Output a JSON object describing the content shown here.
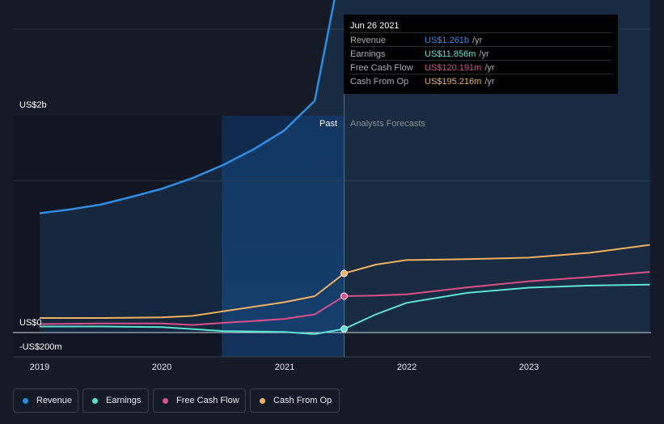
{
  "tooltip": {
    "date": "Jun 26 2021",
    "rows": [
      {
        "label": "Revenue",
        "value": "US$1.261b",
        "unit": "/yr",
        "color": "#2d8de2"
      },
      {
        "label": "Earnings",
        "value": "US$11.856m",
        "unit": "/yr",
        "color": "#5fe1d2"
      },
      {
        "label": "Free Cash Flow",
        "value": "US$120.191m",
        "unit": "/yr",
        "color": "#d94f87"
      },
      {
        "label": "Cash From Op",
        "value": "US$195.216m",
        "unit": "/yr",
        "color": "#f0b062"
      }
    ]
  },
  "region_labels": {
    "past": "Past",
    "forecast": "Analysts Forecasts"
  },
  "legend": [
    {
      "label": "Revenue",
      "color": "#2d8de2"
    },
    {
      "label": "Earnings",
      "color": "#5fe1d2"
    },
    {
      "label": "Free Cash Flow",
      "color": "#d94f87"
    },
    {
      "label": "Cash From Op",
      "color": "#f0b062"
    }
  ],
  "chart_data": {
    "type": "line",
    "x_unit": "year",
    "xlim": [
      2019.0,
      2023.99
    ],
    "ylim": [
      -200,
      2000
    ],
    "y_tick_labels": [
      "US$2b",
      "US$0",
      "-US$200m"
    ],
    "x_tick_labels": [
      "2019",
      "2020",
      "2021",
      "2022",
      "2023"
    ],
    "split_x": 2021.49,
    "highlight_range": [
      2020.49,
      2021.49
    ],
    "series": [
      {
        "name": "Revenue",
        "color": "#2d8de2",
        "area": true,
        "x": [
          2019.0,
          2019.25,
          2019.5,
          2019.75,
          2020.0,
          2020.25,
          2020.5,
          2020.75,
          2021.0,
          2021.25,
          2021.49,
          2021.75,
          2022.0,
          2022.25,
          2022.5,
          2022.75,
          2023.0,
          2023.25,
          2023.5,
          2023.75,
          2023.99
        ],
        "y": [
          393,
          406,
          422,
          447,
          474,
          509,
          552,
          604,
          666,
          764,
          1261,
          1296,
          1329,
          1348,
          1369,
          1385,
          1402,
          1432,
          1460,
          1490,
          1516
        ]
      },
      {
        "name": "Earnings",
        "color": "#5fe1d2",
        "x": [
          2019.0,
          2019.5,
          2020.0,
          2020.5,
          2021.0,
          2021.25,
          2021.49,
          2021.75,
          2022.0,
          2022.5,
          2023.0,
          2023.5,
          2023.99
        ],
        "y": [
          20,
          20,
          18,
          5,
          2,
          -5,
          12,
          60,
          98,
          131,
          148,
          155,
          158
        ]
      },
      {
        "name": "Free Cash Flow",
        "color": "#d94f87",
        "x": [
          2019.0,
          2019.5,
          2020.0,
          2020.25,
          2020.5,
          2020.75,
          2021.0,
          2021.25,
          2021.49,
          2021.75,
          2022.0,
          2022.5,
          2023.0,
          2023.5,
          2023.99
        ],
        "y": [
          28,
          30,
          30,
          25,
          32,
          38,
          45,
          60,
          120,
          122,
          126,
          149,
          169,
          183,
          200
        ]
      },
      {
        "name": "Cash From Op",
        "color": "#f0b062",
        "x": [
          2019.0,
          2019.5,
          2020.0,
          2020.25,
          2020.5,
          2020.75,
          2021.0,
          2021.25,
          2021.49,
          2021.75,
          2022.0,
          2022.5,
          2023.0,
          2023.5,
          2023.99
        ],
        "y": [
          48,
          48,
          50,
          55,
          70,
          85,
          100,
          120,
          195,
          224,
          239,
          242,
          247,
          263,
          289
        ]
      }
    ]
  }
}
